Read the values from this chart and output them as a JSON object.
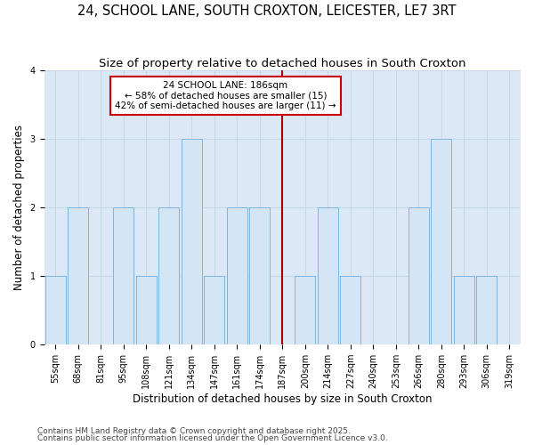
{
  "title": "24, SCHOOL LANE, SOUTH CROXTON, LEICESTER, LE7 3RT",
  "subtitle": "Size of property relative to detached houses in South Croxton",
  "xlabel": "Distribution of detached houses by size in South Croxton",
  "ylabel": "Number of detached properties",
  "bins": [
    "55sqm",
    "68sqm",
    "81sqm",
    "95sqm",
    "108sqm",
    "121sqm",
    "134sqm",
    "147sqm",
    "161sqm",
    "174sqm",
    "187sqm",
    "200sqm",
    "214sqm",
    "227sqm",
    "240sqm",
    "253sqm",
    "266sqm",
    "280sqm",
    "293sqm",
    "306sqm",
    "319sqm"
  ],
  "values": [
    1,
    2,
    0,
    2,
    1,
    2,
    3,
    1,
    2,
    2,
    0,
    1,
    2,
    1,
    0,
    0,
    2,
    3,
    1,
    1,
    0
  ],
  "bar_color": "#d4e6f5",
  "bar_edge_color": "#7eb6e0",
  "vline_index": 10,
  "vline_color": "#aa0000",
  "annotation_line1": "24 SCHOOL LANE: 186sqm",
  "annotation_line2": "← 58% of detached houses are smaller (15)",
  "annotation_line3": "42% of semi-detached houses are larger (11) →",
  "annotation_box_facecolor": "#ffffff",
  "annotation_box_edgecolor": "#cc0000",
  "grid_color": "#c8d8e8",
  "background_color": "#dce8f5",
  "ylim": [
    0,
    4
  ],
  "yticks": [
    0,
    1,
    2,
    3,
    4
  ],
  "footnote1": "Contains HM Land Registry data © Crown copyright and database right 2025.",
  "footnote2": "Contains public sector information licensed under the Open Government Licence v3.0.",
  "title_fontsize": 10.5,
  "subtitle_fontsize": 9.5,
  "axis_label_fontsize": 8.5,
  "tick_fontsize": 7,
  "annotation_fontsize": 7.5,
  "footnote_fontsize": 6.5
}
